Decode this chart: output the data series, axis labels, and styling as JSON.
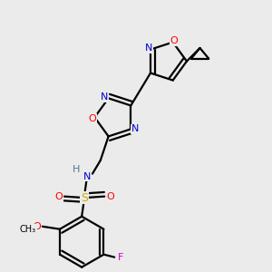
{
  "bg_color": "#ebebeb",
  "atom_colors": {
    "N": "#0000cc",
    "O": "#ff0000",
    "F": "#cc00cc",
    "S": "#ccaa00",
    "C": "#000000",
    "H": "#557788"
  },
  "bond_color": "#000000",
  "bond_width": 1.6,
  "fig_size": [
    3.0,
    3.0
  ],
  "dpi": 100
}
